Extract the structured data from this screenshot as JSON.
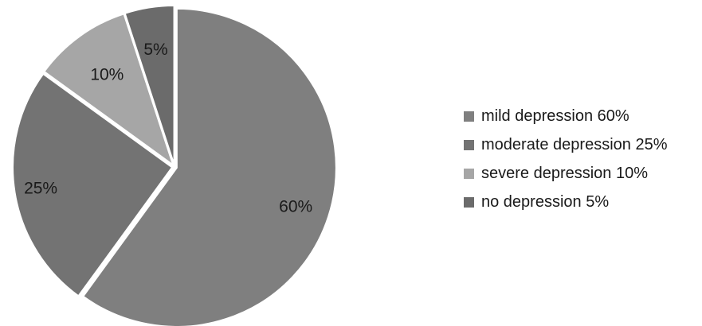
{
  "chart_data": {
    "type": "pie",
    "title": "",
    "start": "12 o'clock",
    "direction": "clockwise",
    "legend_position": "right",
    "slices": [
      {
        "label": "60%",
        "value": 60,
        "color": "#7f7f7f"
      },
      {
        "label": "25%",
        "value": 25,
        "color": "#737373"
      },
      {
        "label": "10%",
        "value": 10,
        "color": "#a6a6a6"
      },
      {
        "label": "5%",
        "value": 5,
        "color": "#6b6b6b"
      }
    ],
    "legend": [
      {
        "label": "mild depression 60%",
        "color": "#7f7f7f"
      },
      {
        "label": "moderate depression 25%",
        "color": "#737373"
      },
      {
        "label": "severe depression 10%",
        "color": "#a6a6a6"
      },
      {
        "label": "no depression 5%",
        "color": "#6b6b6b"
      }
    ]
  }
}
